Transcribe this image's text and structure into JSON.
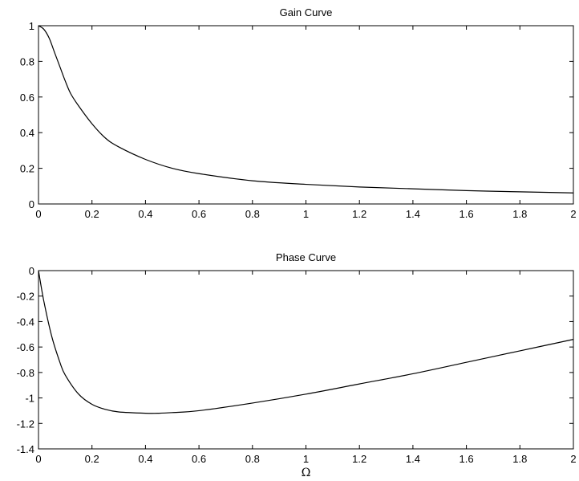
{
  "chart_data": [
    {
      "type": "line",
      "title": "Gain  Curve",
      "xlabel": "",
      "ylabel": "",
      "xlim": [
        0,
        2
      ],
      "ylim": [
        0,
        1
      ],
      "grid": false,
      "xticks": [
        0,
        0.2,
        0.4,
        0.6,
        0.8,
        1,
        1.2,
        1.4,
        1.6,
        1.8,
        2
      ],
      "xtick_labels": [
        "0",
        "0.2",
        "0.4",
        "0.6",
        "0.8",
        "1",
        "1.2",
        "1.4",
        "1.6",
        "1.8",
        "2"
      ],
      "yticks": [
        0,
        0.2,
        0.4,
        0.6,
        0.8,
        1
      ],
      "ytick_labels": [
        "0",
        "0.2",
        "0.4",
        "0.6",
        "0.8",
        "1"
      ],
      "series": [
        {
          "x": [
            0,
            0.02,
            0.04,
            0.06,
            0.08,
            0.1,
            0.12,
            0.15,
            0.2,
            0.25,
            0.3,
            0.4,
            0.5,
            0.6,
            0.8,
            1.0,
            1.2,
            1.4,
            1.6,
            1.8,
            2.0
          ],
          "values": [
            1.0,
            0.98,
            0.93,
            0.85,
            0.77,
            0.69,
            0.62,
            0.55,
            0.45,
            0.37,
            0.32,
            0.25,
            0.2,
            0.17,
            0.13,
            0.11,
            0.095,
            0.085,
            0.075,
            0.068,
            0.062
          ]
        }
      ]
    },
    {
      "type": "line",
      "title": "Phase  Curve",
      "xlabel": "Ω",
      "ylabel": "",
      "xlim": [
        0,
        2
      ],
      "ylim": [
        -1.4,
        0
      ],
      "grid": false,
      "xticks": [
        0,
        0.2,
        0.4,
        0.6,
        0.8,
        1,
        1.2,
        1.4,
        1.6,
        1.8,
        2
      ],
      "xtick_labels": [
        "0",
        "0.2",
        "0.4",
        "0.6",
        "0.8",
        "1",
        "1.2",
        "1.4",
        "1.6",
        "1.8",
        "2"
      ],
      "yticks": [
        0,
        -0.2,
        -0.4,
        -0.6,
        -0.8,
        -1,
        -1.2,
        -1.4
      ],
      "ytick_labels": [
        "0",
        "-0.2",
        "-0.4",
        "-0.6",
        "-0.8",
        "-1",
        "-1.2",
        "-1.4"
      ],
      "series": [
        {
          "x": [
            0,
            0.02,
            0.05,
            0.08,
            0.1,
            0.15,
            0.2,
            0.25,
            0.3,
            0.4,
            0.45,
            0.5,
            0.6,
            0.8,
            1.0,
            1.2,
            1.4,
            1.6,
            1.8,
            2.0
          ],
          "values": [
            0,
            -0.24,
            -0.52,
            -0.72,
            -0.82,
            -0.97,
            -1.05,
            -1.09,
            -1.11,
            -1.12,
            -1.12,
            -1.115,
            -1.1,
            -1.04,
            -0.97,
            -0.89,
            -0.81,
            -0.72,
            -0.63,
            -0.54
          ]
        }
      ]
    }
  ]
}
